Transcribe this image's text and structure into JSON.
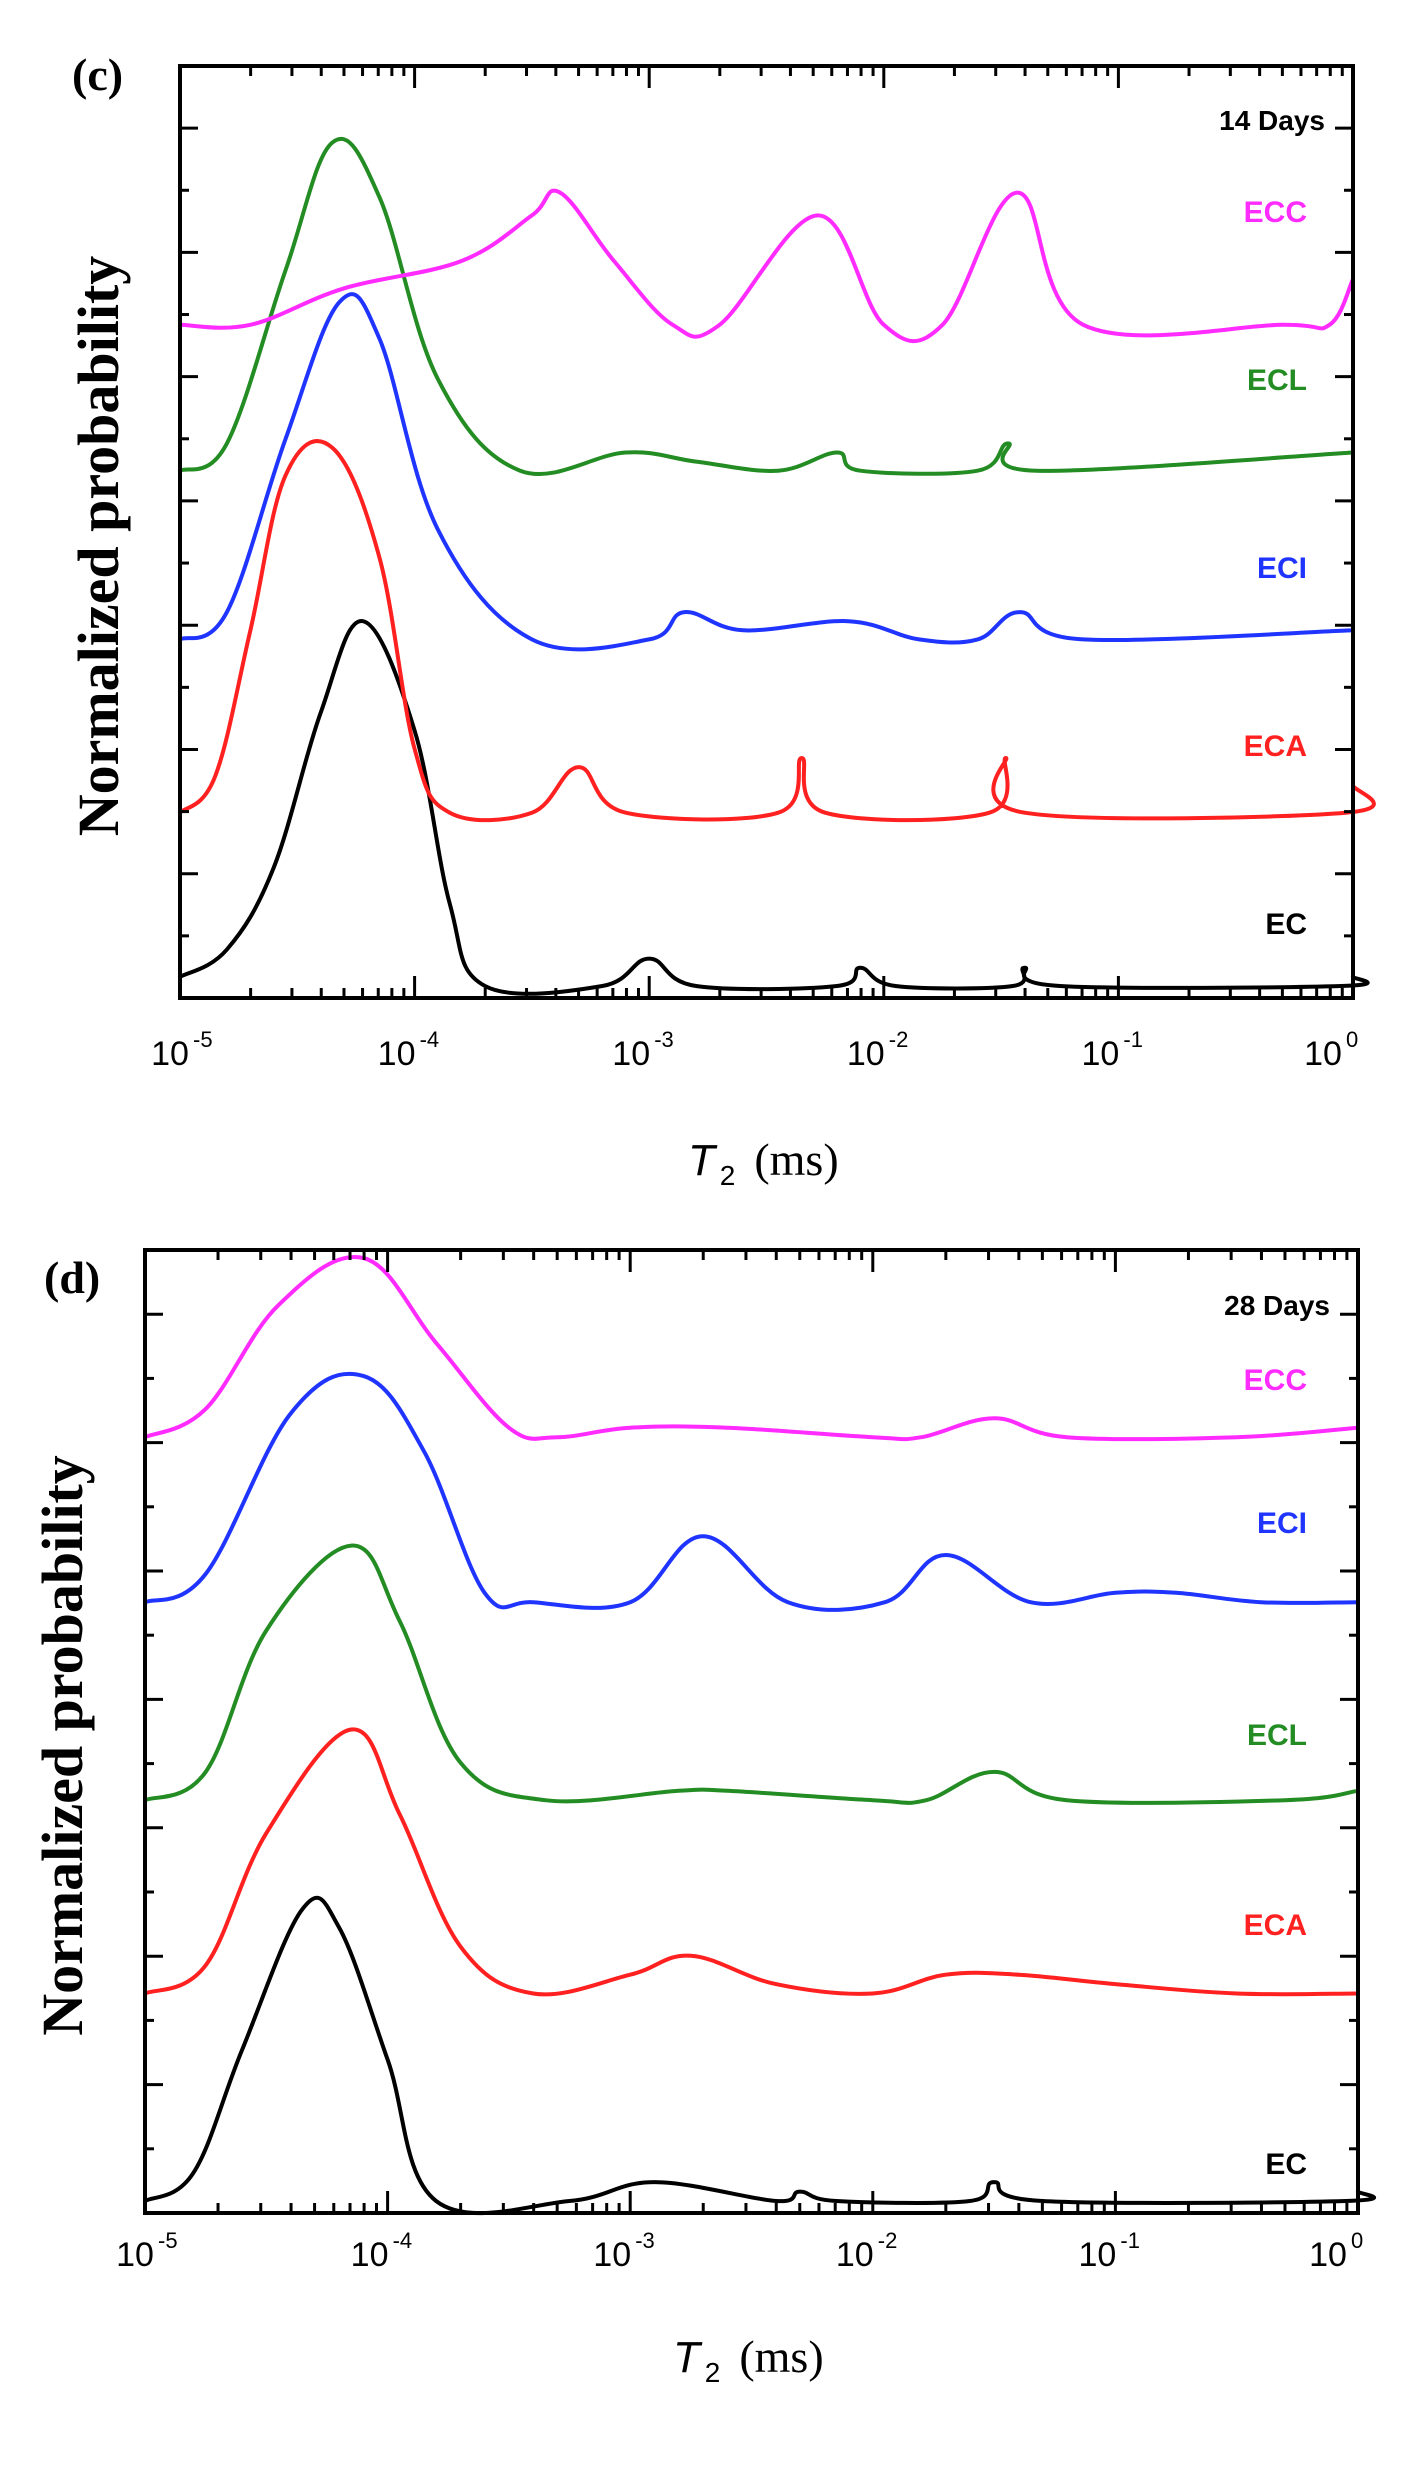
{
  "chart_data": [
    {
      "type": "line",
      "panel_label": "(c)",
      "annotation": "14 Days",
      "title": "",
      "xlabel": "T2 (ms)",
      "xlabel_symbol": "T",
      "xlabel_subscript": "2",
      "xlabel_unit": "(ms)",
      "ylabel": "Normalized probability",
      "xscale": "log",
      "xlim": [
        1e-05,
        1
      ],
      "xtick_labels": [
        {
          "base": "10",
          "exp": "-5"
        },
        {
          "base": "10",
          "exp": "-4"
        },
        {
          "base": "10",
          "exp": "-3"
        },
        {
          "base": "10",
          "exp": "-2"
        },
        {
          "base": "10",
          "exp": "-1"
        },
        {
          "base": "10",
          "exp": "0"
        }
      ],
      "ylim": [
        0,
        1
      ],
      "grid": false,
      "series": [
        {
          "name": "EC",
          "color": "#000000",
          "baseline": 0.0,
          "points": [
            [
              -5,
              0.01
            ],
            [
              -4.8,
              0.04
            ],
            [
              -4.6,
              0.13
            ],
            [
              -4.4,
              0.3
            ],
            [
              -4.22,
              0.4
            ],
            [
              -4.0,
              0.28
            ],
            [
              -3.85,
              0.09
            ],
            [
              -3.7,
              0.0
            ],
            [
              -3.2,
              0.0
            ],
            [
              -3.0,
              0.03
            ],
            [
              -2.8,
              0.0
            ],
            [
              -2.2,
              0.0
            ],
            [
              -2.1,
              0.02
            ],
            [
              -1.95,
              0.0
            ],
            [
              -1.45,
              0.0
            ],
            [
              -1.4,
              0.02
            ],
            [
              -1.25,
              0.0
            ],
            [
              -0.05,
              0.0
            ],
            [
              0,
              0.01
            ]
          ]
        },
        {
          "name": "ECA",
          "color": "#ff2020",
          "baseline": 0.19,
          "points": [
            [
              -5,
              0.0
            ],
            [
              -4.85,
              0.04
            ],
            [
              -4.7,
              0.2
            ],
            [
              -4.55,
              0.37
            ],
            [
              -4.35,
              0.4
            ],
            [
              -4.15,
              0.28
            ],
            [
              -4.0,
              0.07
            ],
            [
              -3.85,
              0.0
            ],
            [
              -3.5,
              0.0
            ],
            [
              -3.3,
              0.05
            ],
            [
              -3.1,
              0.0
            ],
            [
              -2.45,
              0.0
            ],
            [
              -2.35,
              0.06
            ],
            [
              -2.25,
              0.0
            ],
            [
              -1.55,
              0.0
            ],
            [
              -1.48,
              0.06
            ],
            [
              -1.4,
              0.0
            ],
            [
              -0.03,
              0.0
            ],
            [
              0,
              0.03
            ]
          ]
        },
        {
          "name": "ECI",
          "color": "#1f35ff",
          "baseline": 0.38,
          "points": [
            [
              -5,
              0.0
            ],
            [
              -4.8,
              0.03
            ],
            [
              -4.55,
              0.22
            ],
            [
              -4.32,
              0.37
            ],
            [
              -4.15,
              0.33
            ],
            [
              -3.9,
              0.12
            ],
            [
              -3.5,
              0.0
            ],
            [
              -3.0,
              0.0
            ],
            [
              -2.85,
              0.03
            ],
            [
              -2.6,
              0.01
            ],
            [
              -2.15,
              0.02
            ],
            [
              -1.85,
              0.0
            ],
            [
              -1.6,
              0.0
            ],
            [
              -1.42,
              0.03
            ],
            [
              -1.15,
              0.0
            ],
            [
              0,
              0.01
            ]
          ]
        },
        {
          "name": "ECL",
          "color": "#238c23",
          "baseline": 0.565,
          "points": [
            [
              -5,
              0.0
            ],
            [
              -4.8,
              0.03
            ],
            [
              -4.55,
              0.22
            ],
            [
              -4.35,
              0.36
            ],
            [
              -4.15,
              0.3
            ],
            [
              -3.9,
              0.1
            ],
            [
              -3.55,
              0.0
            ],
            [
              -3.1,
              0.02
            ],
            [
              -2.8,
              0.01
            ],
            [
              -2.45,
              0.0
            ],
            [
              -2.2,
              0.02
            ],
            [
              -2.1,
              0.0
            ],
            [
              -1.6,
              0.0
            ],
            [
              -1.47,
              0.03
            ],
            [
              -1.35,
              0.0
            ],
            [
              0,
              0.02
            ]
          ]
        },
        {
          "name": "ECC",
          "color": "#ff2bff",
          "baseline": 0.725,
          "points": [
            [
              -5,
              0.0
            ],
            [
              -4.7,
              0.0
            ],
            [
              -4.3,
              0.04
            ],
            [
              -3.8,
              0.07
            ],
            [
              -3.5,
              0.12
            ],
            [
              -3.38,
              0.145
            ],
            [
              -3.15,
              0.07
            ],
            [
              -2.9,
              0.0
            ],
            [
              -2.7,
              0.0
            ],
            [
              -2.28,
              0.12
            ],
            [
              -2.0,
              0.0
            ],
            [
              -1.75,
              0.0
            ],
            [
              -1.43,
              0.145
            ],
            [
              -1.15,
              0.0
            ],
            [
              -0.3,
              0.0
            ],
            [
              -0.1,
              0.0
            ],
            [
              0,
              0.05
            ]
          ]
        }
      ]
    },
    {
      "type": "line",
      "panel_label": "(d)",
      "annotation": "28 Days",
      "title": "",
      "xlabel": "T2 (ms)",
      "xlabel_symbol": "T",
      "xlabel_subscript": "2",
      "xlabel_unit": "(ms)",
      "ylabel": "Normalized probability",
      "xscale": "log",
      "xlim": [
        1e-05,
        1
      ],
      "xtick_labels": [
        {
          "base": "10",
          "exp": "-5"
        },
        {
          "base": "10",
          "exp": "-4"
        },
        {
          "base": "10",
          "exp": "-3"
        },
        {
          "base": "10",
          "exp": "-2"
        },
        {
          "base": "10",
          "exp": "-1"
        },
        {
          "base": "10",
          "exp": "0"
        }
      ],
      "ylim": [
        0,
        1
      ],
      "grid": false,
      "series": [
        {
          "name": "EC",
          "color": "#000000",
          "baseline": 0.0,
          "points": [
            [
              -5,
              0.0
            ],
            [
              -4.8,
              0.03
            ],
            [
              -4.6,
              0.16
            ],
            [
              -4.35,
              0.31
            ],
            [
              -4.2,
              0.29
            ],
            [
              -4.0,
              0.15
            ],
            [
              -3.8,
              0.0
            ],
            [
              -3.25,
              0.0
            ],
            [
              -2.9,
              0.02
            ],
            [
              -2.4,
              0.0
            ],
            [
              -2.3,
              0.01
            ],
            [
              -2.15,
              0.0
            ],
            [
              -1.6,
              0.0
            ],
            [
              -1.5,
              0.02
            ],
            [
              -1.3,
              0.0
            ],
            [
              -0.05,
              0.0
            ],
            [
              0,
              0.01
            ]
          ]
        },
        {
          "name": "ECA",
          "color": "#ff2020",
          "baseline": 0.22,
          "points": [
            [
              -5,
              0.0
            ],
            [
              -4.75,
              0.03
            ],
            [
              -4.5,
              0.17
            ],
            [
              -4.15,
              0.28
            ],
            [
              -3.95,
              0.19
            ],
            [
              -3.7,
              0.05
            ],
            [
              -3.4,
              0.0
            ],
            [
              -3.0,
              0.02
            ],
            [
              -2.75,
              0.04
            ],
            [
              -2.4,
              0.01
            ],
            [
              -2.0,
              0.0
            ],
            [
              -1.7,
              0.02
            ],
            [
              -1.4,
              0.02
            ],
            [
              -1.0,
              0.01
            ],
            [
              -0.5,
              0.0
            ],
            [
              0,
              0.0
            ]
          ]
        },
        {
          "name": "ECL",
          "color": "#238c23",
          "baseline": 0.425,
          "points": [
            [
              -5,
              0.0
            ],
            [
              -4.75,
              0.03
            ],
            [
              -4.5,
              0.18
            ],
            [
              -4.15,
              0.27
            ],
            [
              -3.95,
              0.19
            ],
            [
              -3.7,
              0.04
            ],
            [
              -3.35,
              0.0
            ],
            [
              -2.8,
              0.01
            ],
            [
              -2.6,
              0.01
            ],
            [
              -2.0,
              0.0
            ],
            [
              -1.78,
              0.0
            ],
            [
              -1.5,
              0.03
            ],
            [
              -1.2,
              0.0
            ],
            [
              -0.3,
              0.0
            ],
            [
              0,
              0.01
            ]
          ]
        },
        {
          "name": "ECI",
          "color": "#1f35ff",
          "baseline": 0.635,
          "points": [
            [
              -5,
              0.0
            ],
            [
              -4.75,
              0.03
            ],
            [
              -4.4,
              0.2
            ],
            [
              -4.1,
              0.24
            ],
            [
              -3.85,
              0.16
            ],
            [
              -3.6,
              0.01
            ],
            [
              -3.4,
              0.0
            ],
            [
              -3.0,
              0.0
            ],
            [
              -2.7,
              0.07
            ],
            [
              -2.35,
              0.0
            ],
            [
              -1.95,
              0.0
            ],
            [
              -1.7,
              0.05
            ],
            [
              -1.35,
              0.0
            ],
            [
              -1.0,
              0.01
            ],
            [
              -0.75,
              0.01
            ],
            [
              -0.4,
              0.0
            ],
            [
              0,
              0.0
            ]
          ]
        },
        {
          "name": "ECC",
          "color": "#ff2bff",
          "baseline": 0.81,
          "points": [
            [
              -5,
              0.0
            ],
            [
              -4.75,
              0.03
            ],
            [
              -4.45,
              0.14
            ],
            [
              -4.1,
              0.19
            ],
            [
              -3.8,
              0.1
            ],
            [
              -3.5,
              0.01
            ],
            [
              -3.3,
              0.0
            ],
            [
              -3.0,
              0.01
            ],
            [
              -2.6,
              0.01
            ],
            [
              -2.0,
              0.0
            ],
            [
              -1.8,
              0.0
            ],
            [
              -1.5,
              0.02
            ],
            [
              -1.2,
              0.0
            ],
            [
              -0.5,
              0.0
            ],
            [
              0,
              0.01
            ]
          ]
        }
      ]
    }
  ]
}
